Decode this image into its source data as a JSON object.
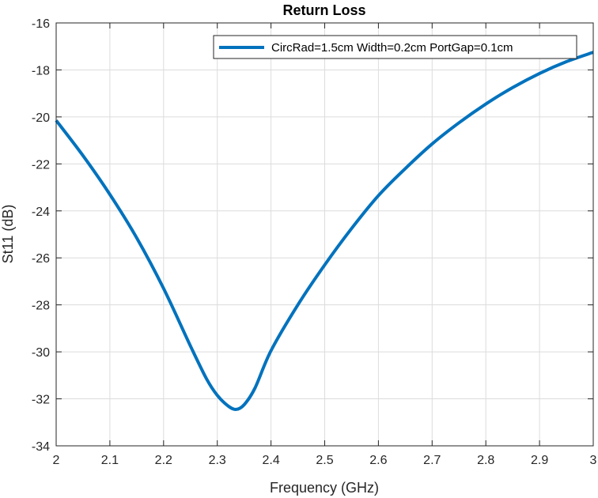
{
  "chart_data": {
    "type": "line",
    "title": "Return Loss",
    "xlabel": "Frequency (GHz)",
    "ylabel": "St11 (dB)",
    "xlim": [
      2,
      3
    ],
    "ylim": [
      -34,
      -16
    ],
    "x_ticks": [
      2,
      2.1,
      2.2,
      2.3,
      2.4,
      2.5,
      2.6,
      2.7,
      2.8,
      2.9,
      3
    ],
    "x_tick_labels": [
      "2",
      "2.1",
      "2.2",
      "2.3",
      "2.4",
      "2.5",
      "2.6",
      "2.7",
      "2.8",
      "2.9",
      "3"
    ],
    "y_ticks": [
      -34,
      -32,
      -30,
      -28,
      -26,
      -24,
      -22,
      -20,
      -18,
      -16
    ],
    "y_tick_labels": [
      "-34",
      "-32",
      "-30",
      "-28",
      "-26",
      "-24",
      "-22",
      "-20",
      "-18",
      "-16"
    ],
    "grid": true,
    "legend_position": "top-right",
    "series": [
      {
        "name": "CircRad=1.5cm Width=0.2cm PortGap=0.1cm",
        "color": "#0072BD",
        "x": [
          2.0,
          2.05,
          2.1,
          2.15,
          2.2,
          2.25,
          2.28,
          2.3,
          2.32,
          2.335,
          2.35,
          2.37,
          2.4,
          2.45,
          2.5,
          2.55,
          2.6,
          2.65,
          2.7,
          2.75,
          2.8,
          2.85,
          2.9,
          2.95,
          3.0
        ],
        "y": [
          -20.15,
          -21.65,
          -23.3,
          -25.15,
          -27.3,
          -29.75,
          -31.15,
          -31.85,
          -32.3,
          -32.45,
          -32.25,
          -31.55,
          -29.95,
          -28.0,
          -26.3,
          -24.75,
          -23.35,
          -22.2,
          -21.15,
          -20.25,
          -19.45,
          -18.75,
          -18.15,
          -17.65,
          -17.25
        ]
      }
    ]
  }
}
